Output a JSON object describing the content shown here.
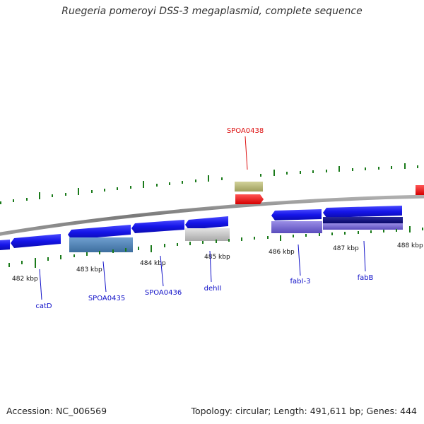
{
  "title": "Ruegeria pomeroyi DSS-3 megaplasmid, complete sequence",
  "footer": {
    "accession": "Accession: NC_006569",
    "topology": "Topology: circular; Length: 491,611 bp; Genes: 444"
  },
  "colors": {
    "backbone": "#808080",
    "tick": "#1a7a1a",
    "gene_blue": "#1414e6",
    "label_blue": "#1010c8",
    "label_red": "#dd1111"
  },
  "ruler_labels": [
    "482 kbp",
    "483 kbp",
    "484 kbp",
    "485 kbp",
    "486 kbp",
    "487 kbp",
    "488 kbp"
  ],
  "gene_labels": [
    {
      "id": "catD",
      "text": "catD",
      "color": "blue"
    },
    {
      "id": "spoa0435",
      "text": "SPOA0435",
      "color": "blue"
    },
    {
      "id": "spoa0436",
      "text": "SPOA0436",
      "color": "blue"
    },
    {
      "id": "dehii",
      "text": "dehII",
      "color": "blue"
    },
    {
      "id": "fabi3",
      "text": "fabI-3",
      "color": "blue"
    },
    {
      "id": "fabb",
      "text": "fabB",
      "color": "blue"
    },
    {
      "id": "spoa0438",
      "text": "SPOA0438",
      "color": "red"
    }
  ]
}
